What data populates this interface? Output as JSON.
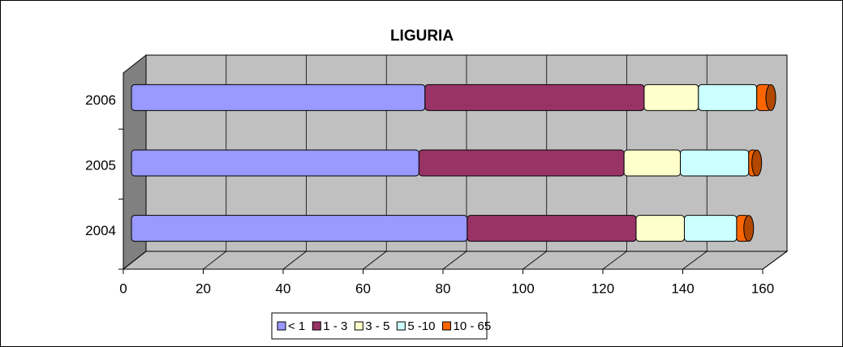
{
  "chart_data": {
    "type": "bar",
    "orientation": "horizontal",
    "stacked": true,
    "title": "LIGURIA",
    "categories": [
      "2004",
      "2005",
      "2006"
    ],
    "series": [
      {
        "name": "< 1",
        "color": "#9999ff",
        "values": [
          83.5,
          71.5,
          73
        ]
      },
      {
        "name": "1 - 3",
        "color": "#993366",
        "values": [
          42,
          51,
          54.5
        ]
      },
      {
        "name": "3 - 5",
        "color": "#ffffcc",
        "values": [
          12,
          14,
          13.5
        ]
      },
      {
        "name": "5 -10",
        "color": "#ccffff",
        "values": [
          13,
          17,
          14.5
        ]
      },
      {
        "name": "10 - 65",
        "color": "#ff6600",
        "values": [
          3,
          2,
          3.5
        ]
      }
    ],
    "xlim": [
      0,
      160
    ],
    "xticks": [
      0,
      20,
      40,
      60,
      80,
      100,
      120,
      140,
      160
    ],
    "grid": true,
    "legend": "bottom"
  }
}
